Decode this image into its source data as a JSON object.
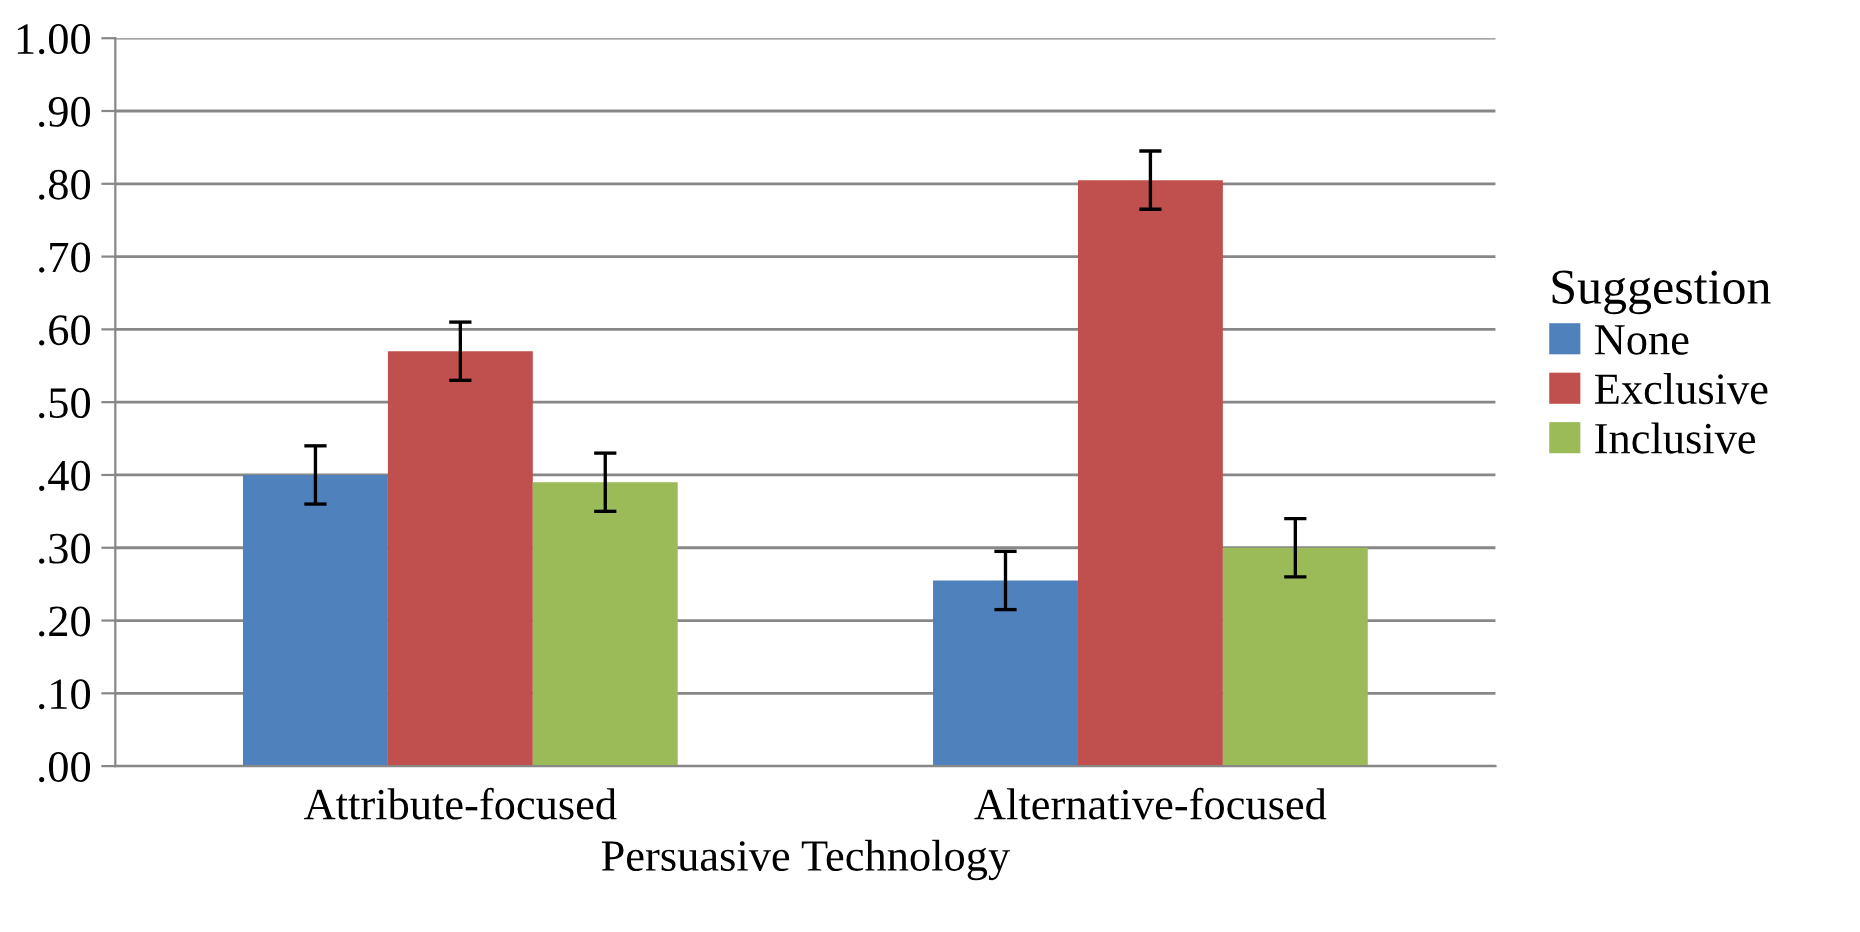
{
  "chart_data": {
    "type": "bar",
    "xlabel": "Persuasive Technology",
    "legend_title": "Suggestion",
    "categories": [
      "Attribute-focused",
      "Alternative-focused"
    ],
    "series": [
      {
        "name": "None",
        "color": "#4f81bd",
        "values": [
          0.4,
          0.255
        ],
        "errors": [
          0.04,
          0.04
        ]
      },
      {
        "name": "Exclusive",
        "color": "#c0504d",
        "values": [
          0.57,
          0.805
        ],
        "errors": [
          0.04,
          0.04
        ]
      },
      {
        "name": "Inclusive",
        "color": "#9bbb59",
        "values": [
          0.39,
          0.3
        ],
        "errors": [
          0.04,
          0.04
        ]
      }
    ],
    "ylim": [
      0,
      1
    ],
    "yticks": [
      {
        "value": 0,
        "label": ".00"
      },
      {
        "value": 0.1,
        "label": ".10"
      },
      {
        "value": 0.2,
        "label": ".20"
      },
      {
        "value": 0.3,
        "label": ".30"
      },
      {
        "value": 0.4,
        "label": ".40"
      },
      {
        "value": 0.5,
        "label": ".50"
      },
      {
        "value": 0.6,
        "label": ".60"
      },
      {
        "value": 0.7,
        "label": ".70"
      },
      {
        "value": 0.8,
        "label": ".80"
      },
      {
        "value": 0.9,
        "label": ".90"
      },
      {
        "value": 1.0,
        "label": "1.00"
      }
    ],
    "grid": "y",
    "legend": "right"
  }
}
